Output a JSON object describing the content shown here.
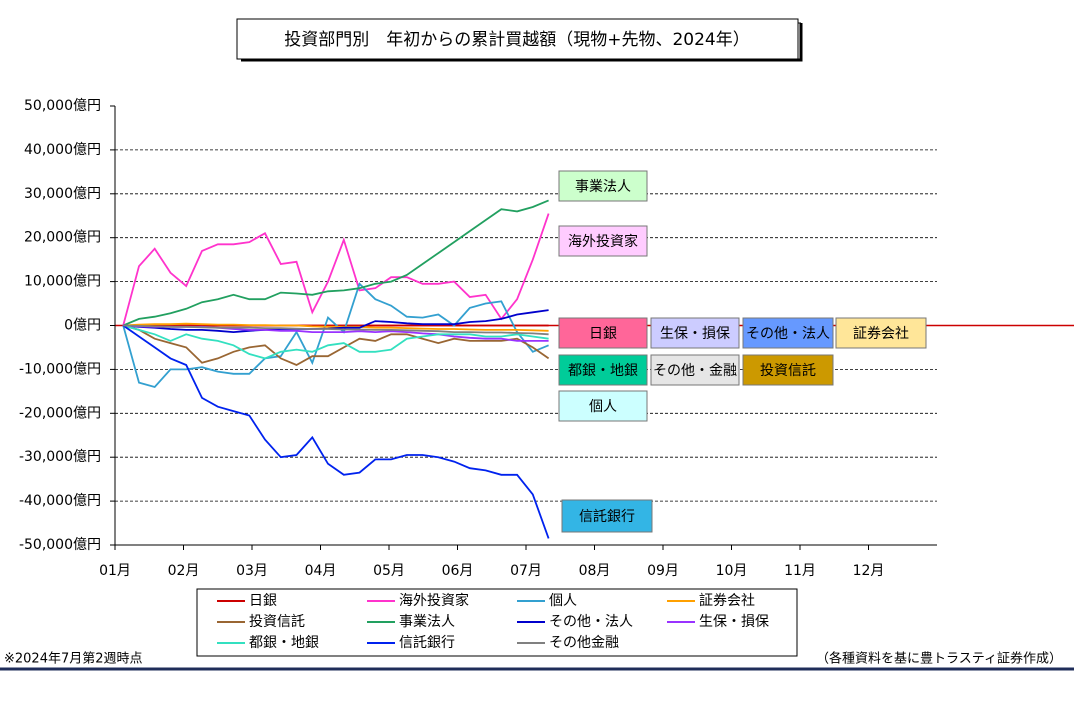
{
  "chart_data": {
    "type": "line",
    "title": "投資部門別　年初からの累計買越額（現物+先物、2024年）",
    "footnote": "※2024年7月第2週時点",
    "source": "（各種資料を基に豊トラスティ証券作成）",
    "xlim": [
      0,
      12
    ],
    "xticks": [
      {
        "value": 0,
        "label": "01月"
      },
      {
        "value": 1,
        "label": "02月"
      },
      {
        "value": 2,
        "label": "03月"
      },
      {
        "value": 3,
        "label": "04月"
      },
      {
        "value": 4,
        "label": "05月"
      },
      {
        "value": 5,
        "label": "06月"
      },
      {
        "value": 6,
        "label": "07月"
      },
      {
        "value": 7,
        "label": "08月"
      },
      {
        "value": 8,
        "label": "09月"
      },
      {
        "value": 9,
        "label": "10月"
      },
      {
        "value": 10,
        "label": "11月"
      },
      {
        "value": 11,
        "label": "12月"
      }
    ],
    "ylim": [
      -50000,
      50000
    ],
    "yticks": [
      {
        "value": -50000,
        "label": "-50,000億円"
      },
      {
        "value": -40000,
        "label": "-40,000億円"
      },
      {
        "value": -30000,
        "label": "-30,000億円"
      },
      {
        "value": -20000,
        "label": "-20,000億円"
      },
      {
        "value": -10000,
        "label": "-10,000億円"
      },
      {
        "value": 0,
        "label": "0億円"
      },
      {
        "value": 10000,
        "label": "10,000億円"
      },
      {
        "value": 20000,
        "label": "20,000億円"
      },
      {
        "value": 30000,
        "label": "30,000億円"
      },
      {
        "value": 40000,
        "label": "40,000億円"
      },
      {
        "value": 50000,
        "label": "50,000億円"
      }
    ],
    "grid": true,
    "x": [
      0.12,
      0.35,
      0.58,
      0.81,
      1.04,
      1.27,
      1.5,
      1.73,
      1.96,
      2.19,
      2.42,
      2.65,
      2.88,
      3.11,
      3.34,
      3.57,
      3.8,
      4.03,
      4.26,
      4.49,
      4.72,
      4.95,
      5.18,
      5.41,
      5.64,
      5.87,
      6.1,
      6.33
    ],
    "series": [
      {
        "name": "日銀",
        "color": "#cc0000",
        "values": [
          0,
          0,
          0,
          0,
          0,
          0,
          0,
          0,
          0,
          0,
          0,
          0,
          0,
          0,
          0,
          0,
          0,
          0,
          0,
          0,
          0,
          0,
          0,
          0,
          0,
          0,
          0,
          0
        ]
      },
      {
        "name": "海外投資家",
        "color": "#ff33cc",
        "values": [
          0,
          13500,
          17500,
          12000,
          9000,
          17000,
          18500,
          18500,
          19000,
          21000,
          14000,
          14500,
          3000,
          10000,
          19500,
          8000,
          8500,
          11000,
          11000,
          9500,
          9500,
          10000,
          6500,
          7000,
          1500,
          6000,
          15000,
          25500
        ]
      },
      {
        "name": "個人",
        "color": "#33a0d0",
        "values": [
          0,
          -13000,
          -14000,
          -10000,
          -10000,
          -9500,
          -10500,
          -11000,
          -11000,
          -7500,
          -7000,
          -1500,
          -8500,
          1800,
          -1500,
          9500,
          6000,
          4500,
          2000,
          1800,
          2500,
          0,
          4000,
          5000,
          5500,
          -1500,
          -6000,
          -4500
        ]
      },
      {
        "name": "証券会社",
        "color": "#ffa000",
        "values": [
          0,
          200,
          300,
          300,
          400,
          300,
          200,
          200,
          100,
          100,
          0,
          0,
          -200,
          -300,
          -300,
          -300,
          -500,
          -500,
          -600,
          -700,
          -800,
          -800,
          -900,
          -1000,
          -1000,
          -1000,
          -1100,
          -1200
        ]
      },
      {
        "name": "投資信託",
        "color": "#996633",
        "values": [
          0,
          -1000,
          -3000,
          -4000,
          -5000,
          -8500,
          -7500,
          -6000,
          -5000,
          -4500,
          -7500,
          -9000,
          -7000,
          -7000,
          -5000,
          -3000,
          -3500,
          -2000,
          -2000,
          -3000,
          -4000,
          -3000,
          -3500,
          -3500,
          -3500,
          -3000,
          -5000,
          -7500
        ]
      },
      {
        "name": "事業法人",
        "color": "#22a060",
        "values": [
          0,
          1500,
          2000,
          2800,
          3800,
          5300,
          6000,
          7000,
          6000,
          6000,
          7500,
          7300,
          7000,
          7800,
          8000,
          8500,
          9500,
          10000,
          11500,
          14000,
          16500,
          19000,
          21500,
          24000,
          26500,
          26000,
          27000,
          28500
        ]
      },
      {
        "name": "その他・法人",
        "color": "#0000cc",
        "values": [
          0,
          -300,
          -500,
          -800,
          -1000,
          -1000,
          -1200,
          -1500,
          -1200,
          -1000,
          -800,
          -800,
          -800,
          -700,
          -500,
          -500,
          1000,
          800,
          500,
          300,
          300,
          300,
          800,
          1000,
          1500,
          2500,
          3000,
          3500
        ]
      },
      {
        "name": "生保・損保",
        "color": "#9933ff",
        "values": [
          0,
          -200,
          -300,
          -300,
          -300,
          -300,
          -500,
          -800,
          -1000,
          -1000,
          -1200,
          -1200,
          -1500,
          -1500,
          -1500,
          -1300,
          -1500,
          -1300,
          -1500,
          -1800,
          -2000,
          -2500,
          -2800,
          -3000,
          -3000,
          -3500,
          -3500,
          -3500
        ]
      },
      {
        "name": "都銀・地銀",
        "color": "#33e0c0",
        "values": [
          0,
          -1000,
          -2000,
          -3500,
          -2000,
          -3000,
          -3500,
          -4500,
          -6500,
          -7500,
          -6000,
          -5500,
          -6000,
          -4500,
          -4000,
          -6000,
          -6000,
          -5500,
          -3000,
          -2500,
          -2000,
          -2000,
          -2000,
          -2500,
          -2500,
          -2000,
          -2500,
          -3000
        ]
      },
      {
        "name": "信託銀行",
        "color": "#0022ee",
        "values": [
          0,
          -2500,
          -5000,
          -7500,
          -9000,
          -16500,
          -18500,
          -19500,
          -20500,
          -26000,
          -30000,
          -29500,
          -25500,
          -31500,
          -34000,
          -33500,
          -30500,
          -30500,
          -29500,
          -29500,
          -30000,
          -31000,
          -32500,
          -33000,
          -34000,
          -34000,
          -38500,
          -48500
        ]
      },
      {
        "name": "その他金融",
        "color": "#808080",
        "values": [
          0,
          -100,
          -200,
          -300,
          -300,
          -400,
          -500,
          -500,
          -500,
          -600,
          -600,
          -700,
          -800,
          -800,
          -900,
          -900,
          -1000,
          -1000,
          -1100,
          -1200,
          -1300,
          -1500,
          -1500,
          -1600,
          -1600,
          -1700,
          -1800,
          -2000
        ]
      }
    ],
    "annotations": [
      {
        "text": "事業法人",
        "color": "#ccffcc"
      },
      {
        "text": "海外投資家",
        "color": "#ffccff"
      },
      {
        "text": "日銀",
        "color": "#ff6699"
      },
      {
        "text": "生保・損保",
        "color": "#ccccff"
      },
      {
        "text": "その他・法人",
        "color": "#6699ff"
      },
      {
        "text": "証券会社",
        "color": "#ffe699"
      },
      {
        "text": "都銀・地銀",
        "color": "#00cc99"
      },
      {
        "text": "その他・金融",
        "color": "#e6e6e6"
      },
      {
        "text": "投資信託",
        "color": "#cc9900"
      },
      {
        "text": "個人",
        "color": "#ccffff"
      },
      {
        "text": "信託銀行",
        "color": "#33b5e5"
      }
    ]
  }
}
